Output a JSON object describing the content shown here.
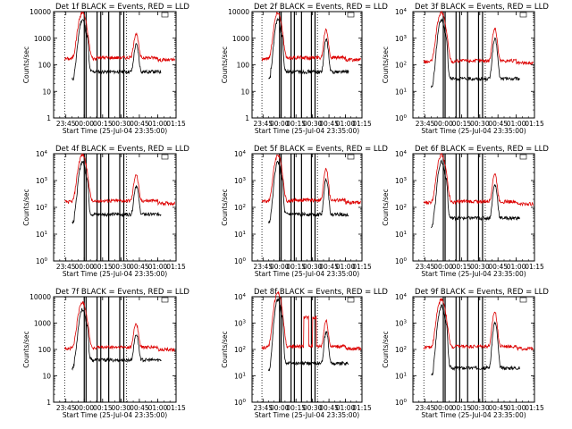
{
  "colors": {
    "events": "#000000",
    "lld": "#dd0000",
    "axis": "#000000",
    "background": "#ffffff"
  },
  "panels": [
    {
      "title": "Det  1f BLACK = Events, RED = LLD",
      "ytype": "decimal",
      "ylabel": "Counts/sec",
      "xlabel": "Start Time (25-Jul-04 23:35:00)",
      "ybase_events": 55,
      "ybase_lld": 170,
      "peak1": 9000,
      "peak2": 1300,
      "markers": [
        9,
        25,
        26.5,
        35.5,
        38.5,
        45,
        54,
        57.3,
        59.5
      ]
    },
    {
      "title": "Det  2f BLACK = Events, RED = LLD",
      "ytype": "decimal",
      "ylabel": "Counts/sec",
      "xlabel": "Start Time (25-Jul-04 23:35:00)",
      "ybase_events": 55,
      "ybase_lld": 170,
      "peak1": 9000,
      "peak2": 2100,
      "markers": [
        9,
        25,
        26.5,
        35.5,
        38.5,
        45,
        54,
        57.3,
        59.5
      ]
    },
    {
      "title": "Det  3f BLACK = Events, RED = LLD",
      "ytype": "sci",
      "ylabel": "Counts/sec",
      "xlabel": "Start Time (25-Jul-04 23:35:00)",
      "ybase_events": 30,
      "ybase_lld": 130,
      "peak1": 9000,
      "peak2": 2200,
      "markers": [
        9,
        25,
        26.5,
        35.5,
        38.5,
        45,
        54,
        57.3,
        59.5
      ]
    },
    {
      "title": "Det  4f BLACK = Events, RED = LLD",
      "ytype": "sci",
      "ylabel": "Counts/sec",
      "xlabel": "Start Time (25-Jul-04 23:35:00)",
      "ybase_events": 55,
      "ybase_lld": 160,
      "peak1": 9000,
      "peak2": 1500,
      "markers": [
        9,
        25,
        26.5,
        35.5,
        38.5,
        45,
        54,
        57.3,
        59.5
      ]
    },
    {
      "title": "Det  5f BLACK = Events, RED = LLD",
      "ytype": "sci",
      "ylabel": "Counts/sec",
      "xlabel": "Start Time (25-Jul-04 23:35:00)",
      "ybase_events": 55,
      "ybase_lld": 170,
      "peak1": 9000,
      "peak2": 2700,
      "markers": [
        9,
        25,
        26.5,
        35.5,
        38.5,
        45,
        54,
        57.3,
        59.5
      ]
    },
    {
      "title": "Det  6f BLACK = Events, RED = LLD",
      "ytype": "sci",
      "ylabel": "Counts/sec",
      "xlabel": "Start Time (25-Jul-04 23:35:00)",
      "ybase_events": 40,
      "ybase_lld": 150,
      "peak1": 9000,
      "peak2": 1600,
      "markers": [
        9,
        25,
        26.5,
        35.5,
        38.5,
        45,
        54,
        57.3,
        59.5
      ]
    },
    {
      "title": "Det  7f BLACK = Events, RED = LLD",
      "ytype": "decimal",
      "ylabel": "Counts/sec",
      "xlabel": "Start Time (25-Jul-04 23:35:00)",
      "ybase_events": 40,
      "ybase_lld": 110,
      "peak1": 6000,
      "peak2": 850,
      "markers": [
        9,
        25,
        26.5,
        35.5,
        38.5,
        45,
        54,
        57.3,
        59.5
      ]
    },
    {
      "title": "Det  8f BLACK = Events, RED = LLD",
      "ytype": "sci",
      "ylabel": "Counts/sec",
      "xlabel": "Start Time (25-Jul-04 23:35:00)",
      "ybase_events": 30,
      "ybase_lld": 120,
      "peak1": 14000,
      "peak2": 1100,
      "special8": true,
      "markers": [
        9,
        25,
        26.5,
        35.5,
        38.5,
        45,
        54,
        57.3,
        59.5
      ]
    },
    {
      "title": "Det  9f BLACK = Events, RED = LLD",
      "ytype": "sci",
      "ylabel": "Counts/sec",
      "xlabel": "Start Time (25-Jul-04 23:35:00)",
      "ybase_events": 20,
      "ybase_lld": 120,
      "peak1": 8000,
      "peak2": 2500,
      "markers": [
        9,
        25,
        26.5,
        35.5,
        38.5,
        45,
        54,
        57.3,
        59.5
      ]
    }
  ],
  "chart_data": {
    "type": "line",
    "x_unit": "minutes after 23:35:00",
    "x_tick_labels": [
      "23:45",
      "00:00",
      "00:15",
      "00:30",
      "00:45",
      "01:00",
      "01:15"
    ],
    "x_tick_minutes": [
      10,
      25,
      40,
      55,
      70,
      85,
      100
    ],
    "xlim": [
      0,
      100
    ],
    "ylim": [
      1,
      10000
    ],
    "yscale": "log",
    "y_tick_values": [
      1,
      10,
      100,
      1000,
      10000
    ],
    "y_tick_labels_decimal": [
      "1",
      "10",
      "100",
      "1000",
      "10000"
    ],
    "y_tick_labels_sci": [
      "10^0",
      "10^1",
      "10^2",
      "10^3",
      "10^4"
    ],
    "series": [
      {
        "name": "Events",
        "color": "#000000"
      },
      {
        "name": "LLD",
        "color": "#dd0000"
      }
    ]
  }
}
